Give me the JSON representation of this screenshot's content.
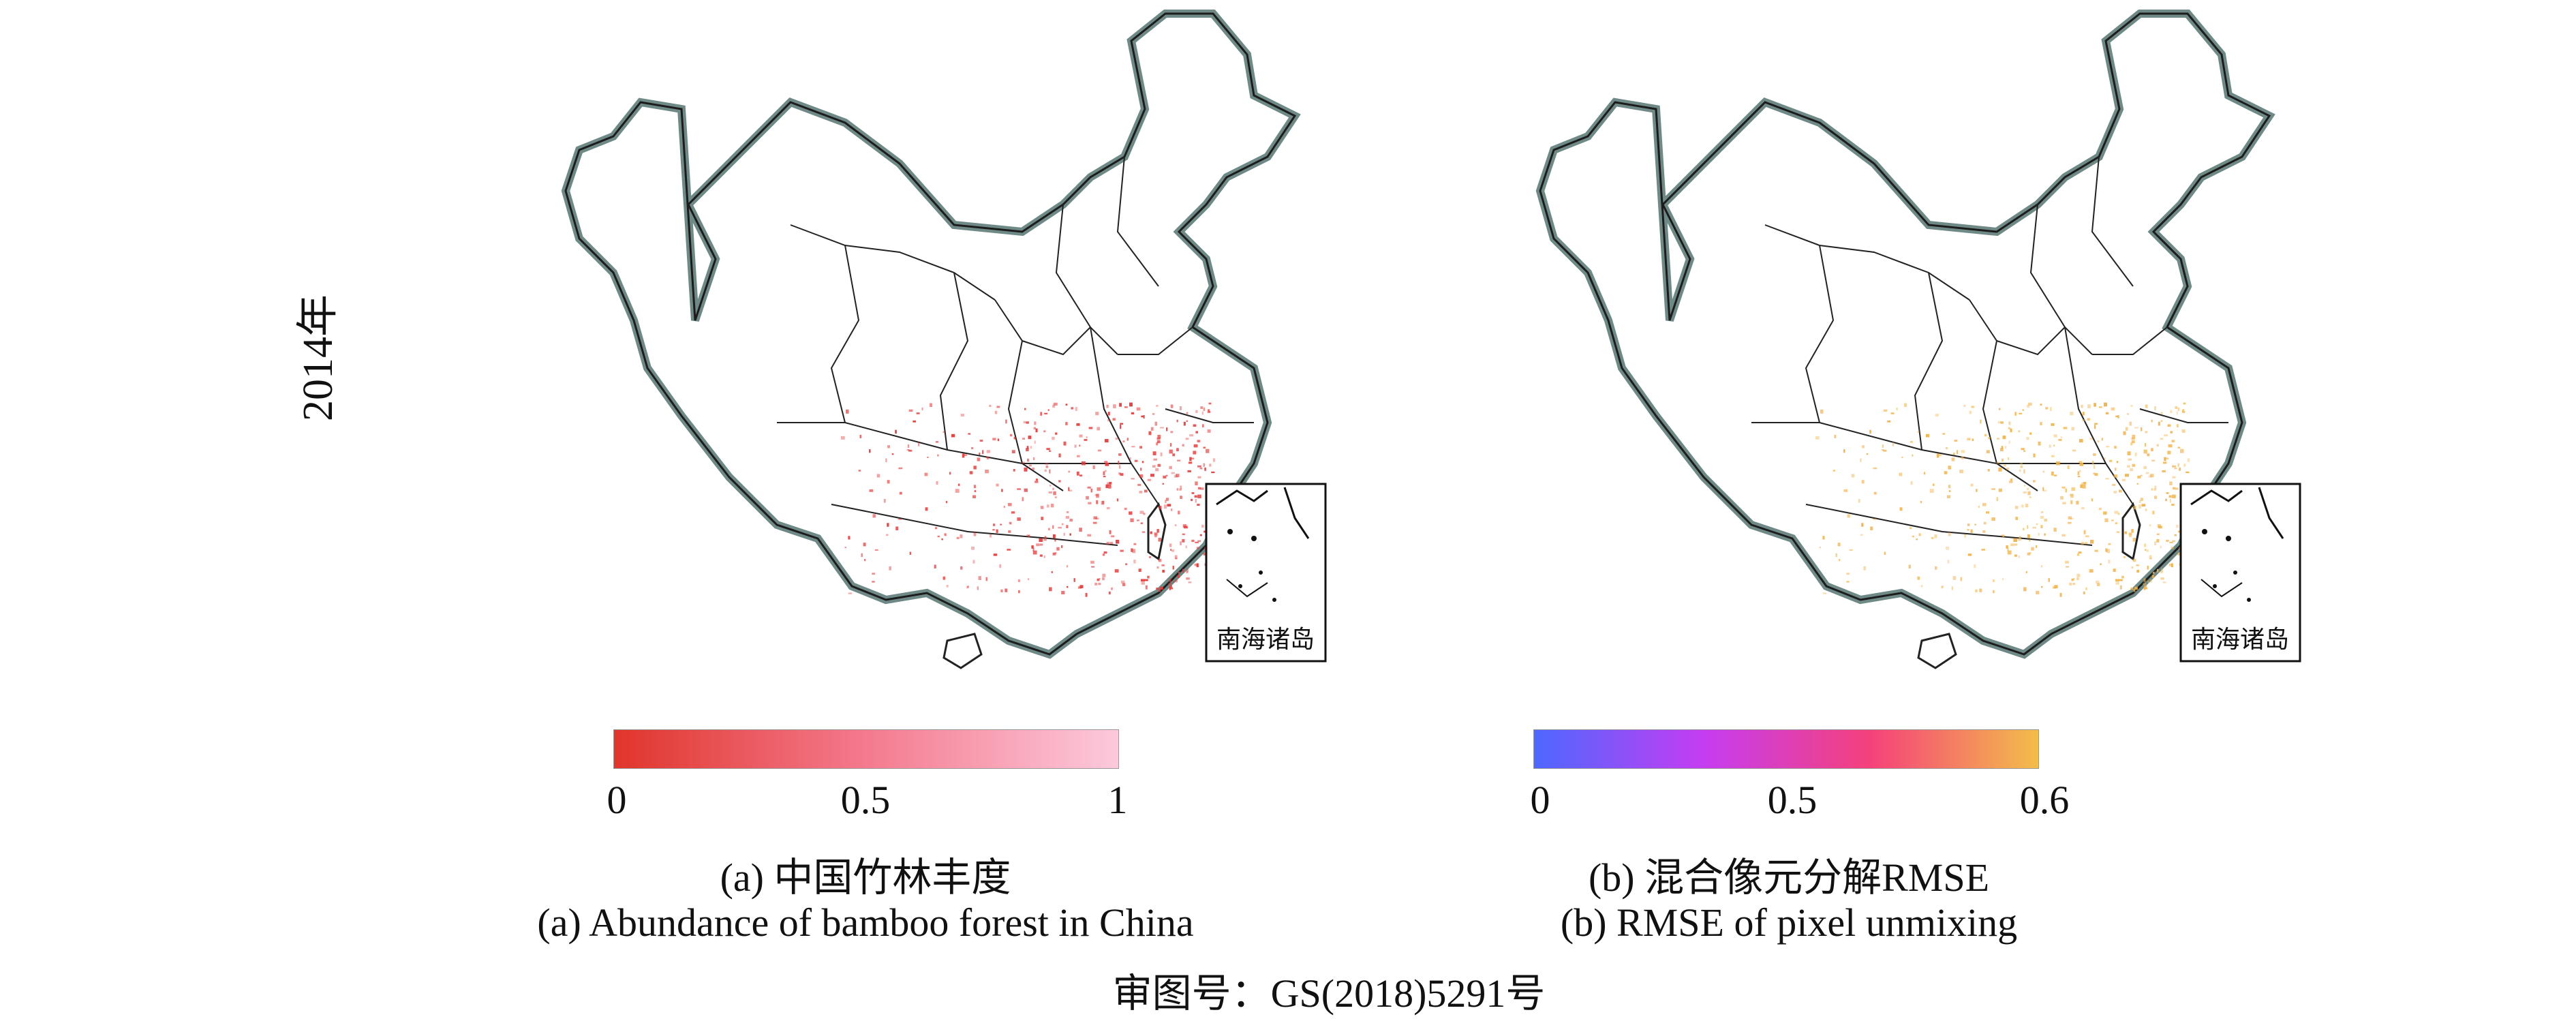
{
  "year_label": "2014年",
  "inset_label": "南海诸岛",
  "panel_a": {
    "caption_cn": "(a) 中国竹林丰度",
    "caption_en": "(a) Abundance of bamboo forest in China",
    "colorbar": {
      "ticks": [
        "0",
        "0.5",
        "1"
      ],
      "range": [
        0,
        1
      ],
      "colors": [
        "#e0352b",
        "#f47a8e",
        "#fdc9dc"
      ]
    },
    "point_color": "#e23a3a"
  },
  "panel_b": {
    "caption_cn": "(b) 混合像元分解RMSE",
    "caption_en": "(b) RMSE of pixel unmixing",
    "colorbar": {
      "ticks": [
        "0",
        "0.5",
        "0.6"
      ],
      "range": [
        0,
        0.6
      ],
      "colors": [
        "#4d68ff",
        "#c53df2",
        "#f5417a",
        "#f3bd4a"
      ]
    },
    "point_color": "#f0b24a"
  },
  "approval_number": "审图号：GS(2018)5291号"
}
